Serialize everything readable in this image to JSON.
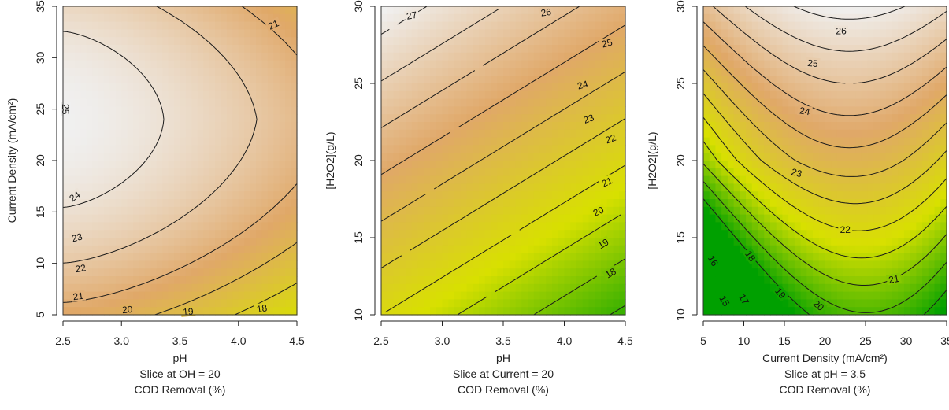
{
  "chart_data": [
    {
      "type": "heatmap",
      "subtype": "contour",
      "xlabel": "pH",
      "ylabel": "Current Density (mA/cm²)",
      "caption": [
        "Slice at OH = 20",
        "COD Removal (%)"
      ],
      "xlim": [
        2.5,
        4.5
      ],
      "ylim": [
        5,
        35
      ],
      "xticks": [
        "2.5",
        "3.0",
        "3.5",
        "4.0",
        "4.5"
      ],
      "xtick_values": [
        2.5,
        3.0,
        3.5,
        4.0,
        4.5
      ],
      "yticks": [
        "5",
        "10",
        "15",
        "20",
        "25",
        "30",
        "35"
      ],
      "ytick_values": [
        5,
        10,
        15,
        20,
        25,
        30,
        35
      ],
      "colorscale": [
        "#00a000",
        "#d8e000",
        "#e0a868",
        "#f0f0f0"
      ],
      "value_range": [
        17,
        25.6
      ],
      "model": {
        "kind": "cross",
        "c": 25.6,
        "x0": 2.5,
        "y0": 24,
        "ax": 0.75,
        "ay": 0.0082,
        "b": 0.012
      },
      "contour_levels": [
        18,
        19,
        20,
        21,
        22,
        23,
        24,
        25
      ],
      "contour_labels": [
        {
          "text": "25",
          "x": 2.52,
          "y": 25.0,
          "angle": 90
        },
        {
          "text": "24",
          "x": 2.6,
          "y": 16.5,
          "angle": -35
        },
        {
          "text": "23",
          "x": 2.62,
          "y": 12.5,
          "angle": -15
        },
        {
          "text": "22",
          "x": 2.65,
          "y": 9.5,
          "angle": -10
        },
        {
          "text": "21",
          "x": 2.63,
          "y": 6.8,
          "angle": -8
        },
        {
          "text": "20",
          "x": 3.05,
          "y": 5.5,
          "angle": -5
        },
        {
          "text": "19",
          "x": 3.57,
          "y": 5.3,
          "angle": -5
        },
        {
          "text": "18",
          "x": 4.2,
          "y": 5.6,
          "angle": -8
        },
        {
          "text": "21",
          "x": 4.3,
          "y": 33.2,
          "angle": -25
        }
      ]
    },
    {
      "type": "heatmap",
      "subtype": "contour",
      "xlabel": "pH",
      "ylabel": "[H2O2](g/L)",
      "caption": [
        "Slice at Current = 20",
        "COD Removal (%)"
      ],
      "xlim": [
        2.5,
        4.5
      ],
      "ylim": [
        10,
        30
      ],
      "xticks": [
        "2.5",
        "3.0",
        "3.5",
        "4.0",
        "4.5"
      ],
      "xtick_values": [
        2.5,
        3.0,
        3.5,
        4.0,
        4.5
      ],
      "yticks": [
        "10",
        "15",
        "20",
        "25",
        "30"
      ],
      "ytick_values": [
        10,
        15,
        20,
        25,
        30
      ],
      "colorscale": [
        "#00a000",
        "#d8e000",
        "#e0a868",
        "#f0f0f0"
      ],
      "value_range": [
        17,
        27.5
      ],
      "model": {
        "kind": "ramp",
        "c": 27.6,
        "x0": 2.5,
        "y0": 30,
        "ax": 1.6,
        "ay": 0.33
      },
      "contour_levels": [
        18,
        19,
        20,
        21,
        22,
        23,
        24,
        25,
        26,
        27
      ],
      "contour_labels": [
        {
          "text": "27",
          "x": 2.75,
          "y": 29.4,
          "angle": -10
        },
        {
          "text": "26",
          "x": 3.85,
          "y": 29.6,
          "angle": -8
        },
        {
          "text": "25",
          "x": 4.35,
          "y": 27.6,
          "angle": -15
        },
        {
          "text": "24",
          "x": 4.15,
          "y": 24.9,
          "angle": -15
        },
        {
          "text": "23",
          "x": 4.2,
          "y": 22.7,
          "angle": -20
        },
        {
          "text": "22",
          "x": 4.38,
          "y": 21.4,
          "angle": -20
        },
        {
          "text": "21",
          "x": 4.35,
          "y": 18.6,
          "angle": -25
        },
        {
          "text": "20",
          "x": 4.28,
          "y": 16.7,
          "angle": -25
        },
        {
          "text": "19",
          "x": 4.32,
          "y": 14.6,
          "angle": -30
        },
        {
          "text": "18",
          "x": 4.38,
          "y": 12.7,
          "angle": -30
        }
      ]
    },
    {
      "type": "heatmap",
      "subtype": "contour",
      "xlabel": "Current Density (mA/cm²)",
      "ylabel": "[H2O2](g/L)",
      "caption": [
        "Slice at pH = 3.5",
        "COD Removal (%)"
      ],
      "xlim": [
        5,
        35
      ],
      "ylim": [
        10,
        30
      ],
      "xticks": [
        "5",
        "10",
        "15",
        "20",
        "25",
        "30",
        "35"
      ],
      "xtick_values": [
        5,
        10,
        15,
        20,
        25,
        30,
        35
      ],
      "yticks": [
        "10",
        "15",
        "20",
        "25",
        "30"
      ],
      "ytick_values": [
        10,
        15,
        20,
        25,
        30
      ],
      "colorscale": [
        "#00a000",
        "#d8e000",
        "#e0a868",
        "#f0f0f0"
      ],
      "value_range": [
        14.5,
        26.4
      ],
      "model": {
        "kind": "valley",
        "c": 26.4,
        "y0": 30,
        "ay": 0.48,
        "t": 0.25,
        "b": 0.0085,
        "xa": 23,
        "xs": 0.2
      },
      "contour_levels": [
        15,
        16,
        17,
        18,
        19,
        20,
        21,
        22,
        23,
        24,
        25,
        26
      ],
      "contour_labels": [
        {
          "text": "26",
          "x": 22.0,
          "y": 28.4,
          "angle": 0
        },
        {
          "text": "25",
          "x": 18.5,
          "y": 26.3,
          "angle": 5
        },
        {
          "text": "24",
          "x": 17.5,
          "y": 23.2,
          "angle": 10
        },
        {
          "text": "23",
          "x": 16.5,
          "y": 19.2,
          "angle": 15
        },
        {
          "text": "22",
          "x": 22.5,
          "y": 15.5,
          "angle": 0
        },
        {
          "text": "21",
          "x": 28.5,
          "y": 12.3,
          "angle": -10
        },
        {
          "text": "20",
          "x": 19.2,
          "y": 10.6,
          "angle": 40
        },
        {
          "text": "19",
          "x": 14.5,
          "y": 11.4,
          "angle": 50
        },
        {
          "text": "18",
          "x": 10.8,
          "y": 13.8,
          "angle": 55
        },
        {
          "text": "17",
          "x": 10.0,
          "y": 11.0,
          "angle": 60
        },
        {
          "text": "16",
          "x": 6.2,
          "y": 13.5,
          "angle": 60
        },
        {
          "text": "15",
          "x": 7.6,
          "y": 10.9,
          "angle": 60
        }
      ]
    }
  ]
}
